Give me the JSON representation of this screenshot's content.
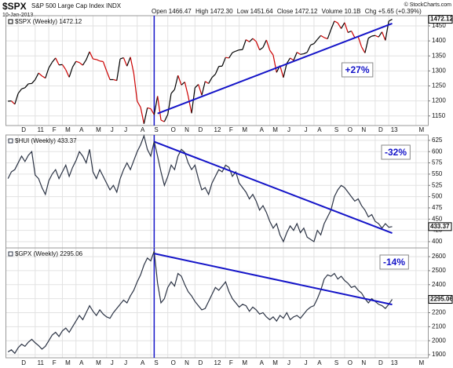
{
  "header": {
    "symbol": "$SPX",
    "name": "S&P 500 Large Cap Index INDX",
    "date": "10-Jan-2013",
    "quote": [
      "Open 1466.47",
      "High 1472.30",
      "Low 1451.64",
      "Close 1472.12",
      "Volume 10.1B",
      "Chg +5.65 (+0.39%)"
    ],
    "credit": "© StockCharts.com"
  },
  "chart_data": [
    {
      "type": "line",
      "categories": [
        null,
        null,
        null,
        "D",
        null,
        null,
        null,
        null,
        "11",
        null,
        null,
        null,
        "F",
        null,
        null,
        null,
        "M",
        null,
        null,
        null,
        "A",
        null,
        null,
        null,
        null,
        "M",
        null,
        null,
        null,
        "J",
        null,
        null,
        null,
        "J",
        null,
        null,
        null,
        null,
        "A",
        null,
        null,
        null,
        "S",
        null,
        null,
        null,
        null,
        "O",
        null,
        null,
        null,
        "N",
        null,
        null,
        null,
        "D",
        null,
        null,
        null,
        null,
        "12",
        null,
        null,
        null,
        "F",
        null,
        null,
        null,
        "M",
        null,
        null,
        null,
        null,
        "A",
        null,
        null,
        null,
        "M",
        null,
        null,
        null,
        "J",
        null,
        null,
        null,
        null,
        "J",
        null,
        null,
        null,
        "A",
        null,
        null,
        null,
        null,
        "S",
        null,
        null,
        null,
        "O",
        null,
        null,
        null,
        "N",
        null,
        null,
        null,
        null,
        "D",
        null,
        null,
        null,
        "13",
        null,
        null,
        null,
        null,
        null,
        null,
        null,
        "M",
        null,
        null,
        null
      ],
      "series": [
        {
          "name": "$SPX (Weekly) 1472.12",
          "color": "#000000",
          "down_color": "#cc0000",
          "values": [
            1199,
            1200,
            1189,
            1225,
            1240,
            1244,
            1257,
            1258,
            1271,
            1293,
            1283,
            1276,
            1310,
            1329,
            1343,
            1320,
            1321,
            1304,
            1279,
            1313,
            1332,
            1328,
            1319,
            1337,
            1364,
            1340,
            1338,
            1333,
            1331,
            1300,
            1271,
            1271,
            1268,
            1340,
            1344,
            1316,
            1346,
            1292,
            1199,
            1179,
            1124,
            1177,
            1174,
            1154,
            1216,
            1136,
            1131,
            1155,
            1225,
            1238,
            1285,
            1253,
            1263,
            1216,
            1159,
            1244,
            1255,
            1219,
            1265,
            1258,
            1278,
            1289,
            1315,
            1316,
            1345,
            1343,
            1361,
            1366,
            1370,
            1371,
            1404,
            1397,
            1408,
            1398,
            1370,
            1378,
            1403,
            1369,
            1353,
            1295,
            1318,
            1278,
            1325,
            1343,
            1335,
            1362,
            1355,
            1357,
            1362,
            1386,
            1391,
            1405,
            1418,
            1411,
            1407,
            1438,
            1466,
            1460,
            1441,
            1461,
            1428,
            1433,
            1411,
            1414,
            1380,
            1360,
            1409,
            1416,
            1418,
            1413,
            1430,
            1402,
            1466,
            1472.12,
            null,
            null,
            null,
            null,
            null,
            null,
            null,
            null,
            null,
            null
          ]
        }
      ],
      "ylim": [
        1118,
        1484
      ],
      "yticks": [
        1150,
        1200,
        1250,
        1300,
        1350,
        1400,
        1450
      ],
      "grid": true,
      "trendline": {
        "x": [
          44,
          113
        ],
        "y": [
          1158,
          1458
        ],
        "color": "#1414c8"
      },
      "vline": 43,
      "annotation": "+27%"
    },
    {
      "type": "line",
      "series": [
        {
          "name": "$HUI (Weekly) 433.37",
          "color": "#2b3344",
          "values": [
            540,
            555,
            560,
            575,
            590,
            578,
            592,
            600,
            548,
            540,
            520,
            505,
            535,
            550,
            560,
            540,
            555,
            570,
            545,
            565,
            580,
            600,
            590,
            575,
            605,
            555,
            540,
            560,
            545,
            530,
            515,
            525,
            510,
            540,
            560,
            575,
            560,
            580,
            600,
            615,
            635,
            605,
            590,
            623,
            590,
            555,
            525,
            545,
            570,
            560,
            590,
            605,
            598,
            575,
            560,
            570,
            540,
            515,
            520,
            505,
            530,
            545,
            560,
            555,
            570,
            565,
            545,
            555,
            530,
            520,
            510,
            495,
            505,
            490,
            470,
            480,
            465,
            445,
            430,
            440,
            415,
            400,
            420,
            435,
            425,
            440,
            420,
            430,
            410,
            405,
            400,
            425,
            415,
            440,
            455,
            470,
            500,
            515,
            525,
            520,
            510,
            500,
            490,
            495,
            480,
            470,
            455,
            460,
            445,
            440,
            430,
            440,
            432,
            433.37,
            null,
            null,
            null,
            null,
            null,
            null,
            null,
            null,
            null,
            null
          ]
        }
      ],
      "ylim": [
        386,
        637
      ],
      "yticks": [
        400,
        425,
        450,
        475,
        500,
        525,
        550,
        575,
        600,
        625
      ],
      "grid": true,
      "trendline": {
        "x": [
          43,
          113
        ],
        "y": [
          622,
          419
        ],
        "color": "#1414c8"
      },
      "vline": 43,
      "annotation": "-32%"
    },
    {
      "type": "line",
      "categories": [
        null,
        null,
        null,
        "D",
        null,
        null,
        null,
        null,
        "11",
        null,
        null,
        null,
        "F",
        null,
        null,
        null,
        "M",
        null,
        null,
        null,
        "A",
        null,
        null,
        null,
        null,
        "M",
        null,
        null,
        null,
        "J",
        null,
        null,
        null,
        "J",
        null,
        null,
        null,
        null,
        "A",
        null,
        null,
        null,
        "S",
        null,
        null,
        null,
        null,
        "O",
        null,
        null,
        null,
        "N",
        null,
        null,
        null,
        "D",
        null,
        null,
        null,
        null,
        "12",
        null,
        null,
        null,
        "F",
        null,
        null,
        null,
        "M",
        null,
        null,
        null,
        null,
        "A",
        null,
        null,
        null,
        "M",
        null,
        null,
        null,
        "J",
        null,
        null,
        null,
        null,
        "J",
        null,
        null,
        null,
        "A",
        null,
        null,
        null,
        null,
        "S",
        null,
        null,
        null,
        "O",
        null,
        null,
        null,
        "N",
        null,
        null,
        null,
        null,
        "D",
        null,
        null,
        null,
        "13",
        null,
        null,
        null,
        null,
        null,
        null,
        null,
        "M",
        null,
        null,
        null
      ],
      "series": [
        {
          "name": "$GPX (Weekly) 2295.06",
          "color": "#2b3344",
          "values": [
            1920,
            1935,
            1910,
            1950,
            1975,
            1960,
            1990,
            2010,
            1985,
            1965,
            1940,
            1960,
            2000,
            2040,
            2060,
            2030,
            2070,
            2090,
            2060,
            2100,
            2140,
            2180,
            2150,
            2200,
            2250,
            2210,
            2180,
            2220,
            2190,
            2170,
            2160,
            2200,
            2230,
            2260,
            2290,
            2270,
            2320,
            2360,
            2420,
            2470,
            2540,
            2590,
            2570,
            2640,
            2410,
            2270,
            2300,
            2380,
            2420,
            2390,
            2480,
            2460,
            2400,
            2350,
            2320,
            2280,
            2250,
            2220,
            2230,
            2280,
            2330,
            2380,
            2360,
            2390,
            2420,
            2350,
            2300,
            2270,
            2240,
            2260,
            2250,
            2210,
            2240,
            2220,
            2190,
            2200,
            2170,
            2150,
            2170,
            2140,
            2180,
            2160,
            2200,
            2150,
            2170,
            2180,
            2160,
            2190,
            2220,
            2240,
            2250,
            2300,
            2360,
            2440,
            2470,
            2460,
            2480,
            2440,
            2460,
            2430,
            2410,
            2380,
            2390,
            2360,
            2340,
            2300,
            2270,
            2300,
            2280,
            2260,
            2250,
            2230,
            2260,
            2295.06,
            null,
            null,
            null,
            null,
            null,
            null,
            null,
            null,
            null,
            null
          ]
        }
      ],
      "ylim": [
        1878,
        2662
      ],
      "yticks": [
        1900,
        2000,
        2100,
        2200,
        2300,
        2400,
        2500,
        2600
      ],
      "grid": true,
      "trendline": {
        "x": [
          43,
          113
        ],
        "y": [
          2622,
          2258
        ],
        "color": "#1414c8"
      },
      "vline": 43,
      "annotation": "-14%"
    }
  ]
}
